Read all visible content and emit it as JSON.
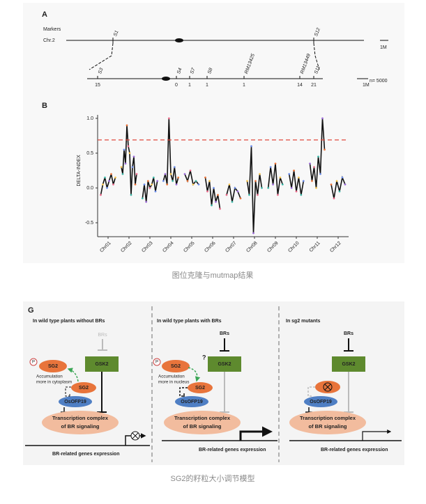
{
  "figure_a": {
    "label": "A",
    "markers_label": "Markers",
    "chromosome": "Chr.2",
    "top_markers": [
      "S1",
      "S12"
    ],
    "scale_top": "1M",
    "markers": [
      {
        "name": "S3",
        "recombinants": 15
      },
      {
        "name": "S4",
        "recombinants": 0
      },
      {
        "name": "S7",
        "recombinants": 1
      },
      {
        "name": "S8",
        "recombinants": 1
      },
      {
        "name": "RM13425",
        "recombinants": 1
      },
      {
        "name": "RM13449",
        "recombinants": 14
      },
      {
        "name": "S11",
        "recombinants": 21
      }
    ],
    "population": "n= 5000",
    "scale_bottom": "1M"
  },
  "figure_b": {
    "label": "B",
    "chart_data": {
      "type": "line",
      "y_label": "DELTA-INDEX",
      "categories": [
        "Chr01",
        "Chr02",
        "Chr03",
        "Chr04",
        "Chr05",
        "Chr06",
        "Chr07",
        "Chr08",
        "Chr09",
        "Chr10",
        "Chr11",
        "Chr12"
      ],
      "segments": [
        [
          -0.1,
          0.05,
          0.15,
          0.0,
          0.1,
          0.2,
          0.05,
          0.15
        ],
        [
          0.3,
          0.2,
          0.55,
          0.35,
          0.9,
          0.6,
          0.5,
          -0.1,
          0.3,
          0.45,
          0.05,
          0.2
        ],
        [
          -0.15,
          0.05,
          -0.2,
          0.1,
          0.0,
          0.05,
          0.15,
          -0.05,
          0.1
        ],
        [
          0.1,
          0.2,
          0.05,
          1.0,
          0.2,
          0.1,
          0.3,
          0.05,
          0.15
        ],
        [
          0.2,
          0.1,
          0.25,
          0.05,
          0.1,
          0.05
        ],
        [
          0.15,
          -0.05,
          0.1,
          -0.25,
          0.0,
          -0.2,
          -0.1,
          -0.3
        ],
        [
          -0.1,
          0.05,
          -0.2,
          0.0,
          -0.05,
          -0.15
        ],
        [
          0.1,
          -0.1,
          0.6,
          -0.65,
          0.1,
          -0.1,
          0.2,
          0.0
        ],
        [
          0.0,
          0.3,
          0.05,
          0.35,
          -0.1,
          0.15,
          0.05
        ],
        [
          0.2,
          0.0,
          0.25,
          -0.05,
          0.15,
          -0.1,
          0.1
        ],
        [
          0.35,
          0.1,
          0.3,
          0.0,
          0.45,
          0.2,
          1.0,
          0.55
        ],
        [
          0.05,
          -0.15,
          0.1,
          -0.05,
          0.15,
          0.05
        ]
      ],
      "color": "#111111",
      "threshold": 0.69,
      "threshold_color": "#e0473c",
      "ylim": [
        -0.7,
        1.05
      ],
      "yticks": [
        {
          "value": 1,
          "label": "1.0"
        },
        0.5,
        {
          "value": 0,
          "label": "0.0"
        },
        -0.5
      ]
    }
  },
  "caption_1": "图位克隆与mutmap结果",
  "figure_g": {
    "label": "G",
    "panels": [
      {
        "title": "In wild type plants without BRs",
        "brs": "BRs",
        "gsk2": "GSK2",
        "phospho": "P",
        "sg2": "SG2",
        "note": [
          "Accumulation",
          "more in cytoplasm"
        ],
        "sg2_nucleus": "SG2",
        "ofp19": "OsOFP19",
        "complex": [
          "Transcription complex",
          "of BR signaling"
        ],
        "genes": "BR-related genes expression"
      },
      {
        "title": "In wild type plants with BRs",
        "brs": "BRs",
        "gsk2": "GSK2",
        "phospho": "P",
        "sg2": "SG2",
        "question": "?",
        "note": [
          "Accumulation",
          "more in nucleus"
        ],
        "sg2_nucleus": "SG2",
        "ofp19": "OsOFP19",
        "complex": [
          "Transcription complex",
          "of BR signaling"
        ],
        "genes": "BR-related genes expression"
      },
      {
        "title": "In sg2 mutants",
        "brs": "BRs",
        "gsk2": "GSK2",
        "ofp19": "OsOFP19",
        "complex": [
          "Transcription complex",
          "of BR signaling"
        ],
        "genes": "BR-related genes expression"
      }
    ]
  },
  "caption_2": "SG2的籽粒大小调节模型"
}
